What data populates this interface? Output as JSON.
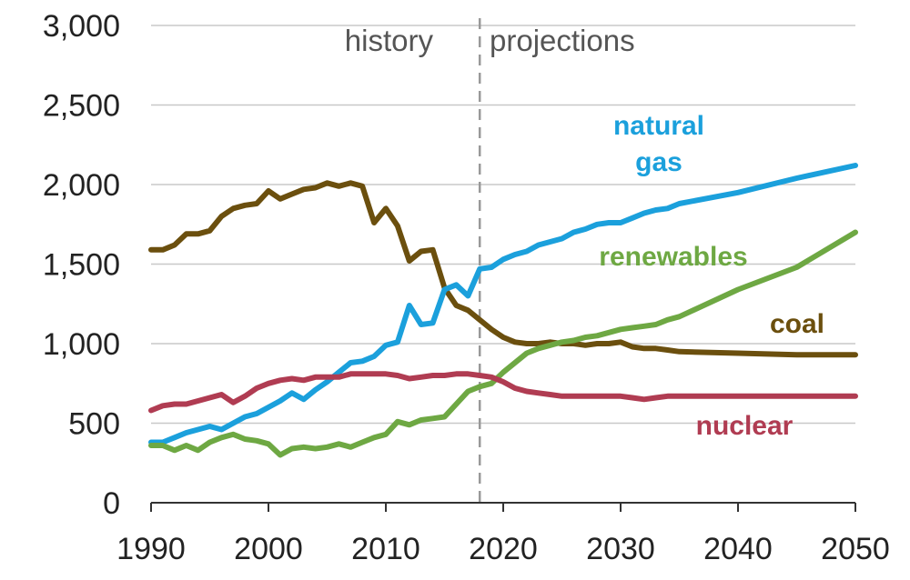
{
  "chart_data": {
    "type": "line",
    "title": "",
    "xlabel": "",
    "ylabel": "",
    "xlim": [
      1990,
      2050
    ],
    "ylim": [
      0,
      3000
    ],
    "grid": true,
    "legend": "inline labels",
    "x_ticks": [
      "1990",
      "2000",
      "2010",
      "2020",
      "2030",
      "2040",
      "2050"
    ],
    "y_ticks": [
      "0",
      "500",
      "1,000",
      "1,500",
      "2,000",
      "2,500",
      "3,000"
    ],
    "divider_year": 2018,
    "region_labels": {
      "history": "history",
      "projections": "projections"
    },
    "series": [
      {
        "name": "coal",
        "label_lines": [
          "coal"
        ],
        "color": "#6b4f0e",
        "x": [
          1990,
          1991,
          1992,
          1993,
          1994,
          1995,
          1996,
          1997,
          1998,
          1999,
          2000,
          2001,
          2002,
          2003,
          2004,
          2005,
          2006,
          2007,
          2008,
          2009,
          2010,
          2011,
          2012,
          2013,
          2014,
          2015,
          2016,
          2017,
          2018,
          2019,
          2020,
          2021,
          2022,
          2023,
          2024,
          2025,
          2026,
          2027,
          2028,
          2029,
          2030,
          2031,
          2032,
          2033,
          2034,
          2035,
          2040,
          2045,
          2050
        ],
        "y": [
          1590,
          1590,
          1620,
          1690,
          1690,
          1710,
          1800,
          1850,
          1870,
          1880,
          1960,
          1910,
          1940,
          1970,
          1980,
          2010,
          1990,
          2010,
          1990,
          1760,
          1850,
          1740,
          1520,
          1580,
          1590,
          1350,
          1240,
          1210,
          1150,
          1090,
          1040,
          1010,
          1000,
          1000,
          1010,
          1000,
          1000,
          990,
          1000,
          1000,
          1010,
          980,
          970,
          970,
          960,
          950,
          940,
          930,
          930
        ]
      },
      {
        "name": "natural gas",
        "label_lines": [
          "natural",
          "gas"
        ],
        "color": "#1ba0dc",
        "x": [
          1990,
          1991,
          1992,
          1993,
          1994,
          1995,
          1996,
          1997,
          1998,
          1999,
          2000,
          2001,
          2002,
          2003,
          2004,
          2005,
          2006,
          2007,
          2008,
          2009,
          2010,
          2011,
          2012,
          2013,
          2014,
          2015,
          2016,
          2017,
          2018,
          2019,
          2020,
          2021,
          2022,
          2023,
          2024,
          2025,
          2026,
          2027,
          2028,
          2029,
          2030,
          2031,
          2032,
          2033,
          2034,
          2035,
          2040,
          2045,
          2050
        ],
        "y": [
          380,
          380,
          410,
          440,
          460,
          480,
          460,
          500,
          540,
          560,
          600,
          640,
          690,
          650,
          710,
          760,
          820,
          880,
          890,
          920,
          990,
          1010,
          1240,
          1120,
          1130,
          1340,
          1370,
          1300,
          1470,
          1480,
          1530,
          1560,
          1580,
          1620,
          1640,
          1660,
          1700,
          1720,
          1750,
          1760,
          1760,
          1790,
          1820,
          1840,
          1850,
          1880,
          1950,
          2040,
          2120
        ]
      },
      {
        "name": "renewables",
        "label_lines": [
          "renewables"
        ],
        "color": "#6ea843",
        "x": [
          1990,
          1991,
          1992,
          1993,
          1994,
          1995,
          1996,
          1997,
          1998,
          1999,
          2000,
          2001,
          2002,
          2003,
          2004,
          2005,
          2006,
          2007,
          2008,
          2009,
          2010,
          2011,
          2012,
          2013,
          2014,
          2015,
          2016,
          2017,
          2018,
          2019,
          2020,
          2021,
          2022,
          2023,
          2024,
          2025,
          2026,
          2027,
          2028,
          2029,
          2030,
          2031,
          2032,
          2033,
          2034,
          2035,
          2040,
          2045,
          2050
        ],
        "y": [
          360,
          360,
          330,
          360,
          330,
          380,
          410,
          430,
          400,
          390,
          370,
          300,
          340,
          350,
          340,
          350,
          370,
          350,
          380,
          410,
          430,
          510,
          490,
          520,
          530,
          540,
          620,
          700,
          730,
          750,
          820,
          880,
          940,
          970,
          990,
          1010,
          1020,
          1040,
          1050,
          1070,
          1090,
          1100,
          1110,
          1120,
          1150,
          1170,
          1340,
          1480,
          1700
        ]
      },
      {
        "name": "nuclear",
        "label_lines": [
          "nuclear"
        ],
        "color": "#b03c52",
        "x": [
          1990,
          1991,
          1992,
          1993,
          1994,
          1995,
          1996,
          1997,
          1998,
          1999,
          2000,
          2001,
          2002,
          2003,
          2004,
          2005,
          2006,
          2007,
          2008,
          2009,
          2010,
          2011,
          2012,
          2013,
          2014,
          2015,
          2016,
          2017,
          2018,
          2019,
          2020,
          2021,
          2022,
          2023,
          2024,
          2025,
          2026,
          2027,
          2028,
          2029,
          2030,
          2031,
          2032,
          2033,
          2034,
          2035,
          2040,
          2045,
          2050
        ],
        "y": [
          580,
          610,
          620,
          620,
          640,
          660,
          680,
          630,
          670,
          720,
          750,
          770,
          780,
          770,
          790,
          790,
          790,
          810,
          810,
          810,
          810,
          800,
          780,
          790,
          800,
          800,
          810,
          810,
          800,
          790,
          760,
          720,
          700,
          690,
          680,
          670,
          670,
          670,
          670,
          670,
          670,
          660,
          650,
          660,
          670,
          670,
          670,
          670,
          670
        ]
      }
    ]
  }
}
